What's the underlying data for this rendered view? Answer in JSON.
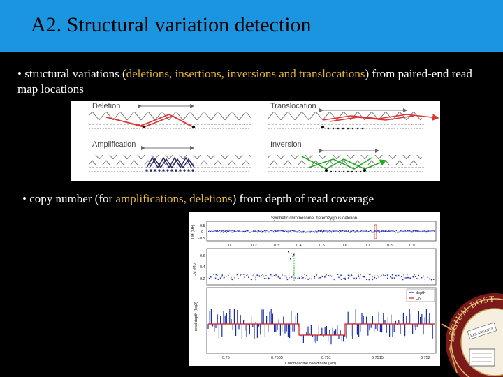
{
  "slide": {
    "title": "A2. Structural variation detection",
    "accent_color": "#e8b830",
    "title_bar_color": "#1b95e0"
  },
  "bullet1": {
    "marker": "•",
    "pre": " structural variations (",
    "highlight": "deletions, insertions, inversions and translocations",
    "post": ") from paired-end read map locations"
  },
  "bullet2": {
    "marker": "•",
    "pre": " copy number (for ",
    "highlight": "amplifications, deletions",
    "post": ") from depth of read coverage"
  },
  "figure1": {
    "labels": {
      "deletion": "Deletion",
      "translocation": "Translocation",
      "amplification": "Amplification",
      "inversion": "Inversion"
    }
  },
  "figure2": {
    "title": "Synthetic chromosome:  heterozygous deletion",
    "top_ylabel": "LM (Mb)",
    "top_yticks": [
      "0.5",
      "0",
      "-0.5"
    ],
    "top_xticks": [
      "0.1",
      "0.2",
      "0.3",
      "0.4",
      "0.5",
      "0.6",
      "0.7",
      "0.8",
      "0.9"
    ],
    "mid_ylabel": "LM (Mb)",
    "mid_yticks": [
      "0.6",
      "0.4",
      "0.2"
    ],
    "bottom_ylabel": "read depth (log2)",
    "bottom_xticks": [
      "0.75",
      "0.7505",
      "0.751",
      "0.7515",
      "0.752"
    ],
    "xlabel": "Chromosome coordinate (Mb)",
    "legend": [
      "depth",
      "CN"
    ]
  },
  "logo": {
    "text_top": "LEGIUM BOST",
    "text_inner": "REX ARGENTA"
  }
}
